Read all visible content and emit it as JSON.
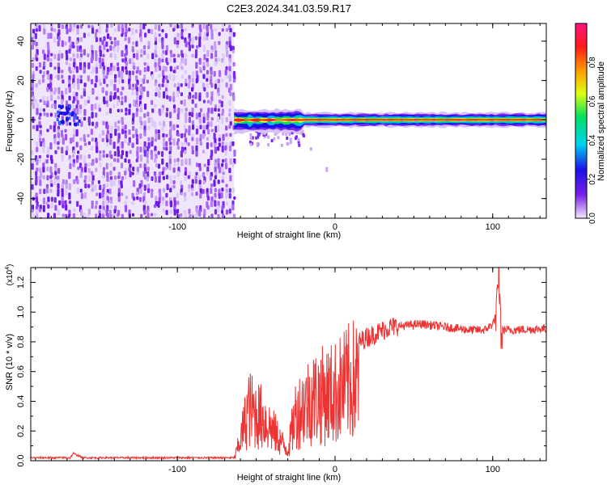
{
  "title": "C2E3.2024.341.03.59.R17",
  "chart_data": [
    {
      "type": "heatmap",
      "xlabel": "Height of straight line (km)",
      "ylabel": "Frequency (Hz)",
      "xlim": [
        -193,
        134
      ],
      "ylim": [
        -50,
        49
      ],
      "x_ticks": [
        -100,
        0,
        100
      ],
      "y_ticks": [
        -40,
        -20,
        0,
        20,
        40
      ],
      "colorbar": {
        "label": "Normalized spectral amplitude",
        "range": [
          0,
          1
        ],
        "ticks": [
          "0.0",
          "0.2",
          "0.4",
          "0.6",
          "0.8"
        ],
        "colors": [
          "#f2ecfb",
          "#7a1fe8",
          "#1a10e8",
          "#00d4f0",
          "#00e060",
          "#e0ff10",
          "#ff9900",
          "#ff1a1a",
          "#ff1480"
        ]
      },
      "regions": [
        {
          "name": "noise",
          "x_range": [
            -193,
            -64
          ],
          "freq_range": [
            -50,
            49
          ],
          "amplitude": 0.1
        },
        {
          "name": "signal",
          "x_range": [
            -64,
            134
          ],
          "center_freq": 0,
          "peak_amplitude": 1.0
        }
      ]
    },
    {
      "type": "line",
      "xlabel": "Height of straight line (km)",
      "ylabel": "SNR (10 * v/v)",
      "y_scale_label": "(x10",
      "y_scale_exp": "4",
      "y_scale_suffix": ")",
      "xlim": [
        -193,
        134
      ],
      "ylim": [
        0,
        1.3
      ],
      "x_ticks": [
        -100,
        0,
        100
      ],
      "y_ticks": [
        "0.0",
        "0.2",
        "0.4",
        "0.6",
        "0.8",
        "1.0",
        "1.2"
      ],
      "color": "#ee3333",
      "series_envelope": [
        {
          "x": -193,
          "y": 0.02
        },
        {
          "x": -168,
          "y": 0.02
        },
        {
          "x": -166,
          "y": 0.05
        },
        {
          "x": -160,
          "y": 0.02
        },
        {
          "x": -64,
          "y": 0.02
        },
        {
          "x": -60,
          "y": 0.2
        },
        {
          "x": -55,
          "y": 0.5
        },
        {
          "x": -45,
          "y": 0.4
        },
        {
          "x": -35,
          "y": 0.2
        },
        {
          "x": -30,
          "y": 0.1
        },
        {
          "x": -25,
          "y": 0.45
        },
        {
          "x": -15,
          "y": 0.6
        },
        {
          "x": 0,
          "y": 0.65
        },
        {
          "x": 10,
          "y": 0.76
        },
        {
          "x": 20,
          "y": 0.83
        },
        {
          "x": 35,
          "y": 0.9
        },
        {
          "x": 55,
          "y": 0.92
        },
        {
          "x": 70,
          "y": 0.9
        },
        {
          "x": 85,
          "y": 0.88
        },
        {
          "x": 95,
          "y": 0.88
        },
        {
          "x": 100,
          "y": 0.92
        },
        {
          "x": 103,
          "y": 1.0
        },
        {
          "x": 104,
          "y": 1.3
        },
        {
          "x": 105,
          "y": 0.88
        },
        {
          "x": 115,
          "y": 0.88
        },
        {
          "x": 134,
          "y": 0.89
        }
      ]
    }
  ]
}
